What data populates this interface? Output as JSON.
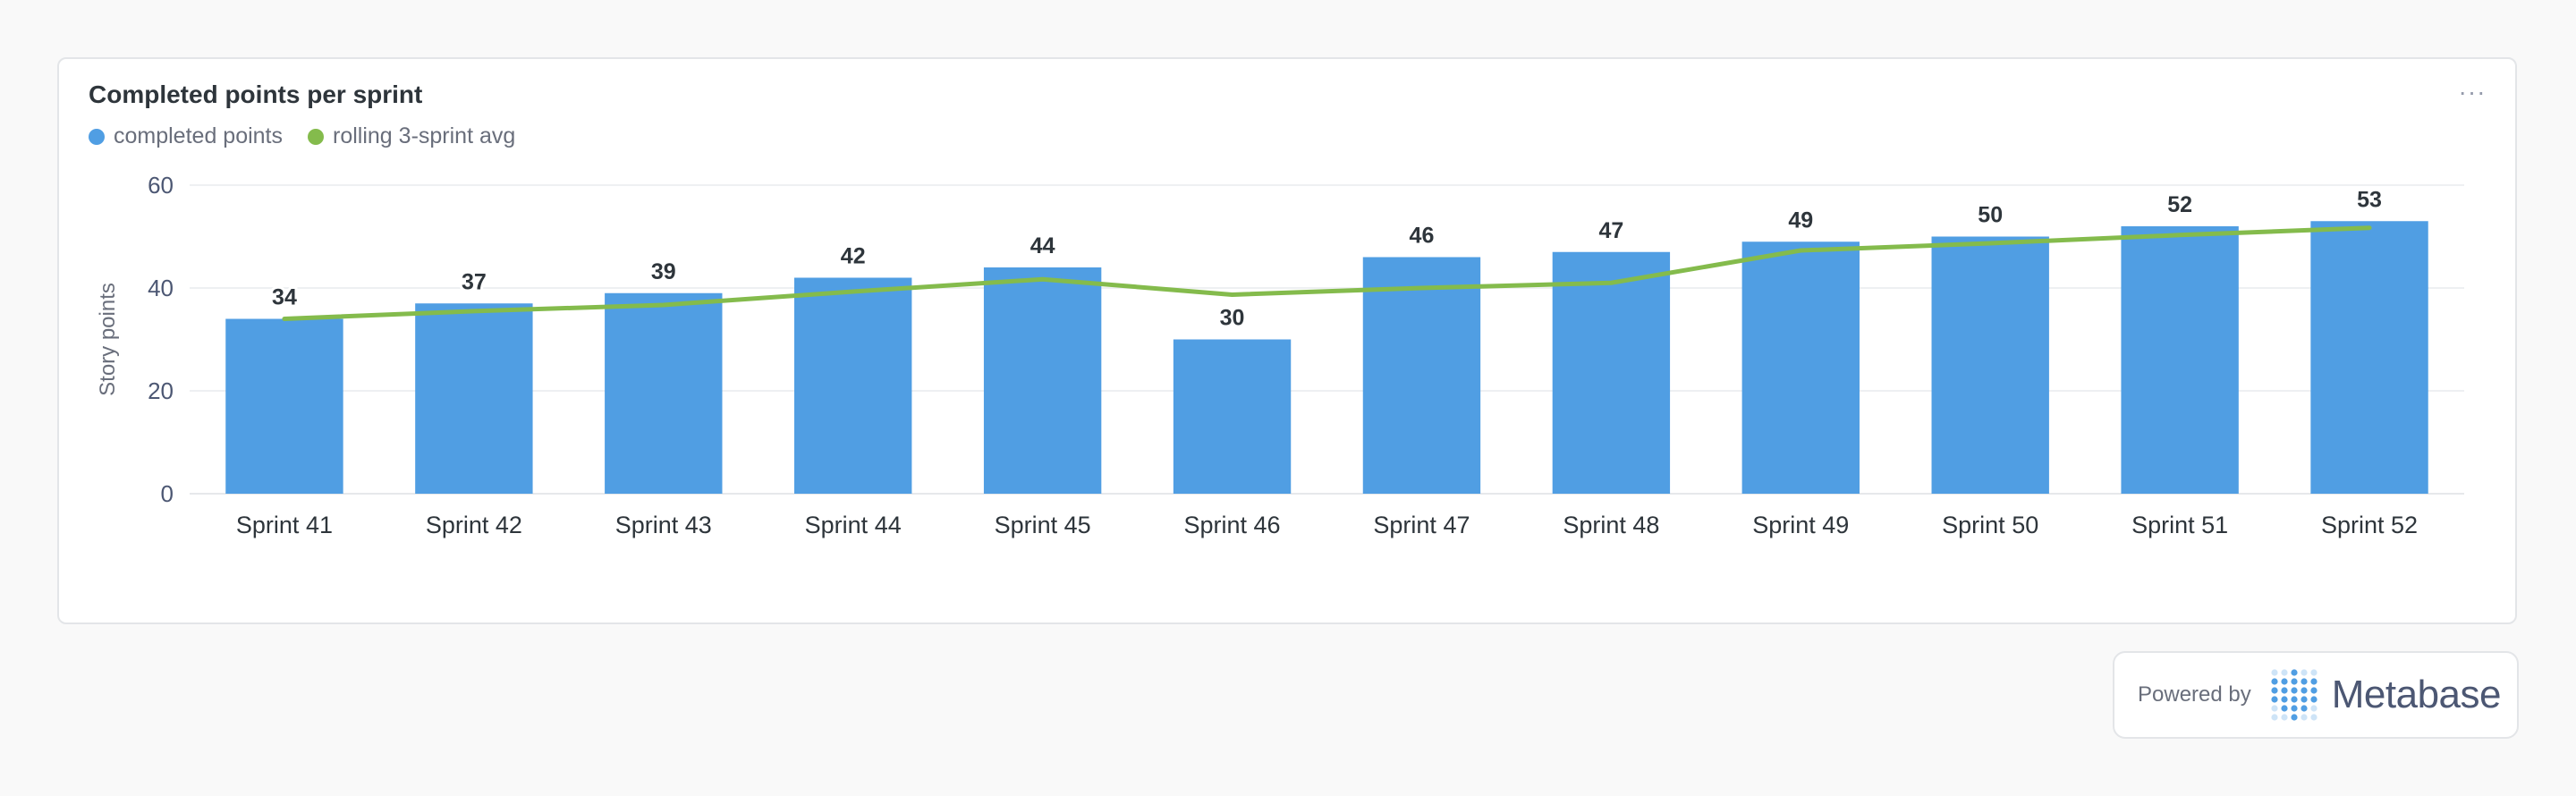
{
  "card": {
    "title": "Completed points per sprint",
    "more_label": "···"
  },
  "legend": [
    {
      "label": "completed points",
      "color": "#509ee3"
    },
    {
      "label": "rolling 3-sprint avg",
      "color": "#84bb4c"
    }
  ],
  "chart_data": {
    "type": "bar",
    "title": "Completed points per sprint",
    "ylabel": "Story points",
    "xlabel": "",
    "ylim": [
      0,
      60
    ],
    "yticks": [
      0,
      20,
      40,
      60
    ],
    "grid": true,
    "legend_position": "top-left",
    "categories": [
      "Sprint 41",
      "Sprint 42",
      "Sprint 43",
      "Sprint 44",
      "Sprint 45",
      "Sprint 46",
      "Sprint 47",
      "Sprint 48",
      "Sprint 49",
      "Sprint 50",
      "Sprint 51",
      "Sprint 52"
    ],
    "series": [
      {
        "name": "completed points",
        "type": "bar",
        "color": "#509ee3",
        "values": [
          34,
          37,
          39,
          42,
          44,
          30,
          46,
          47,
          49,
          50,
          52,
          53
        ],
        "show_labels": true
      },
      {
        "name": "rolling 3-sprint avg",
        "type": "line",
        "color": "#84bb4c",
        "values": [
          34,
          35.5,
          36.7,
          39.3,
          41.7,
          38.7,
          40,
          41,
          47.3,
          48.7,
          50.3,
          51.7
        ]
      }
    ]
  },
  "footer": {
    "powered_by": "Powered by",
    "brand": "Metabase",
    "logo_icon": "metabase-logo-icon",
    "brand_color": "#509ee3"
  }
}
